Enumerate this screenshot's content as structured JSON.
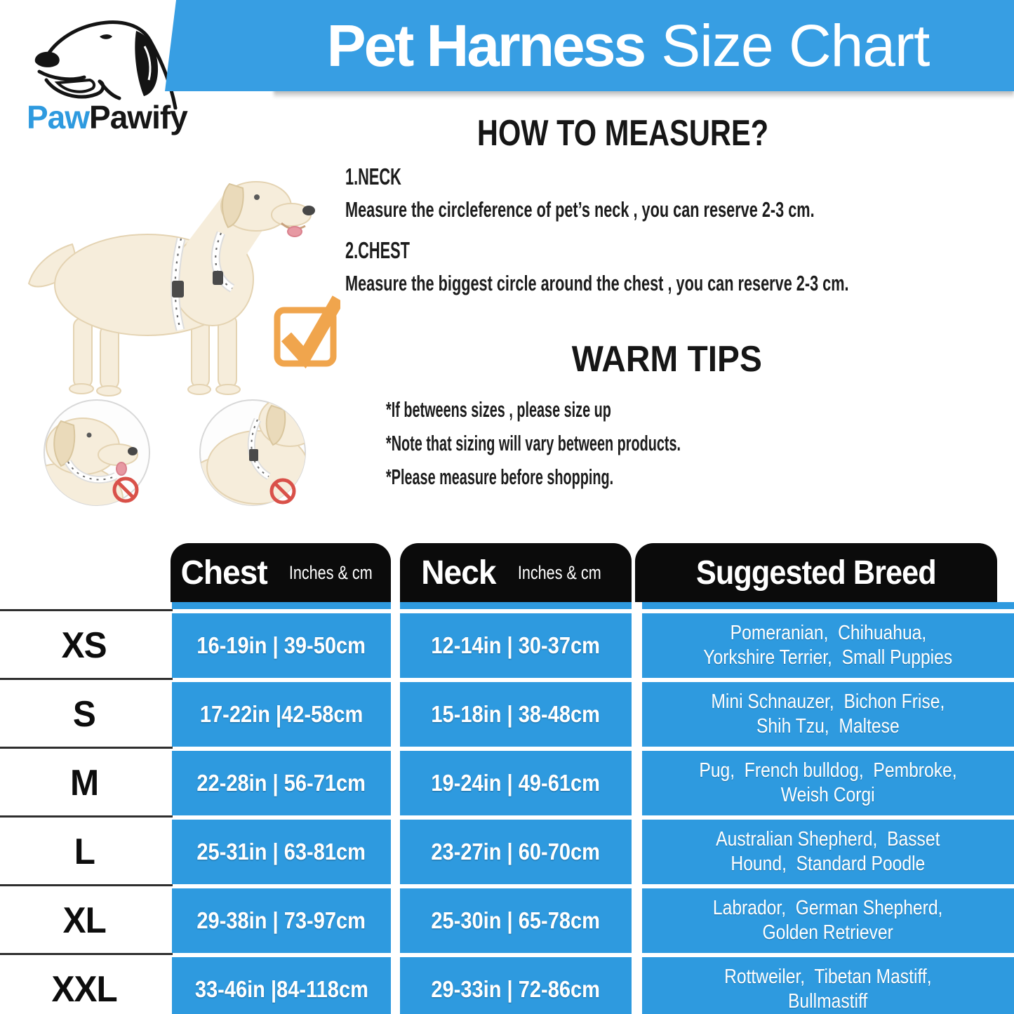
{
  "logo": {
    "brand_blue": "Paw",
    "brand_black": "Pawify"
  },
  "banner": {
    "title_bold": "Pet Harness",
    "title_light": "Size Chart"
  },
  "how_to_measure": {
    "title": "HOW TO MEASURE?",
    "steps": [
      {
        "label": "1.NECK",
        "text": "Measure the circleference of pet’s neck , you can reserve 2-3 cm."
      },
      {
        "label": "2.CHEST",
        "text": "Measure the biggest circle around the chest , you can reserve 2-3 cm."
      }
    ]
  },
  "warm_tips": {
    "title": "WARM TIPS",
    "tips": [
      "*If betweens sizes , please size up",
      "*Note that sizing will vary between products.",
      "*Please measure before shopping."
    ]
  },
  "table": {
    "headers": {
      "chest": "Chest",
      "neck": "Neck",
      "units": "Inches & cm",
      "breed": "Suggested Breed"
    },
    "rows": [
      {
        "size": "XS",
        "chest": "16-19in | 39-50cm",
        "neck": "12-14in | 30-37cm",
        "breed": [
          "Pomeranian,  Chihuahua,",
          "Yorkshire Terrier,  Small Puppies"
        ]
      },
      {
        "size": "S",
        "chest": "17-22in |42-58cm",
        "neck": "15-18in | 38-48cm",
        "breed": [
          "Mini Schnauzer,  Bichon Frise,",
          "Shih Tzu,  Maltese"
        ]
      },
      {
        "size": "M",
        "chest": "22-28in | 56-71cm",
        "neck": "19-24in | 49-61cm",
        "breed": [
          "Pug,  French bulldog,  Pembroke,",
          "Weish Corgi"
        ]
      },
      {
        "size": "L",
        "chest": "25-31in | 63-81cm",
        "neck": "23-27in | 60-70cm",
        "breed": [
          "Australian Shepherd,  Basset",
          "Hound,  Standard Poodle"
        ]
      },
      {
        "size": "XL",
        "chest": "29-38in | 73-97cm",
        "neck": "25-30in | 65-78cm",
        "breed": [
          "Labrador,  German Shepherd,",
          "Golden Retriever"
        ]
      },
      {
        "size": "XXL",
        "chest": "33-46in |84-118cm",
        "neck": "29-33in | 72-86cm",
        "breed": [
          "Rottweiler,  Tibetan Mastiff,",
          "Bullmastiff"
        ]
      }
    ]
  },
  "colors": {
    "blue": "#2e9adf",
    "banner_blue": "#379ee3",
    "header_black": "#0b0b0b",
    "check_orange": "#f0a54d",
    "prohibit_red": "#d95149"
  }
}
